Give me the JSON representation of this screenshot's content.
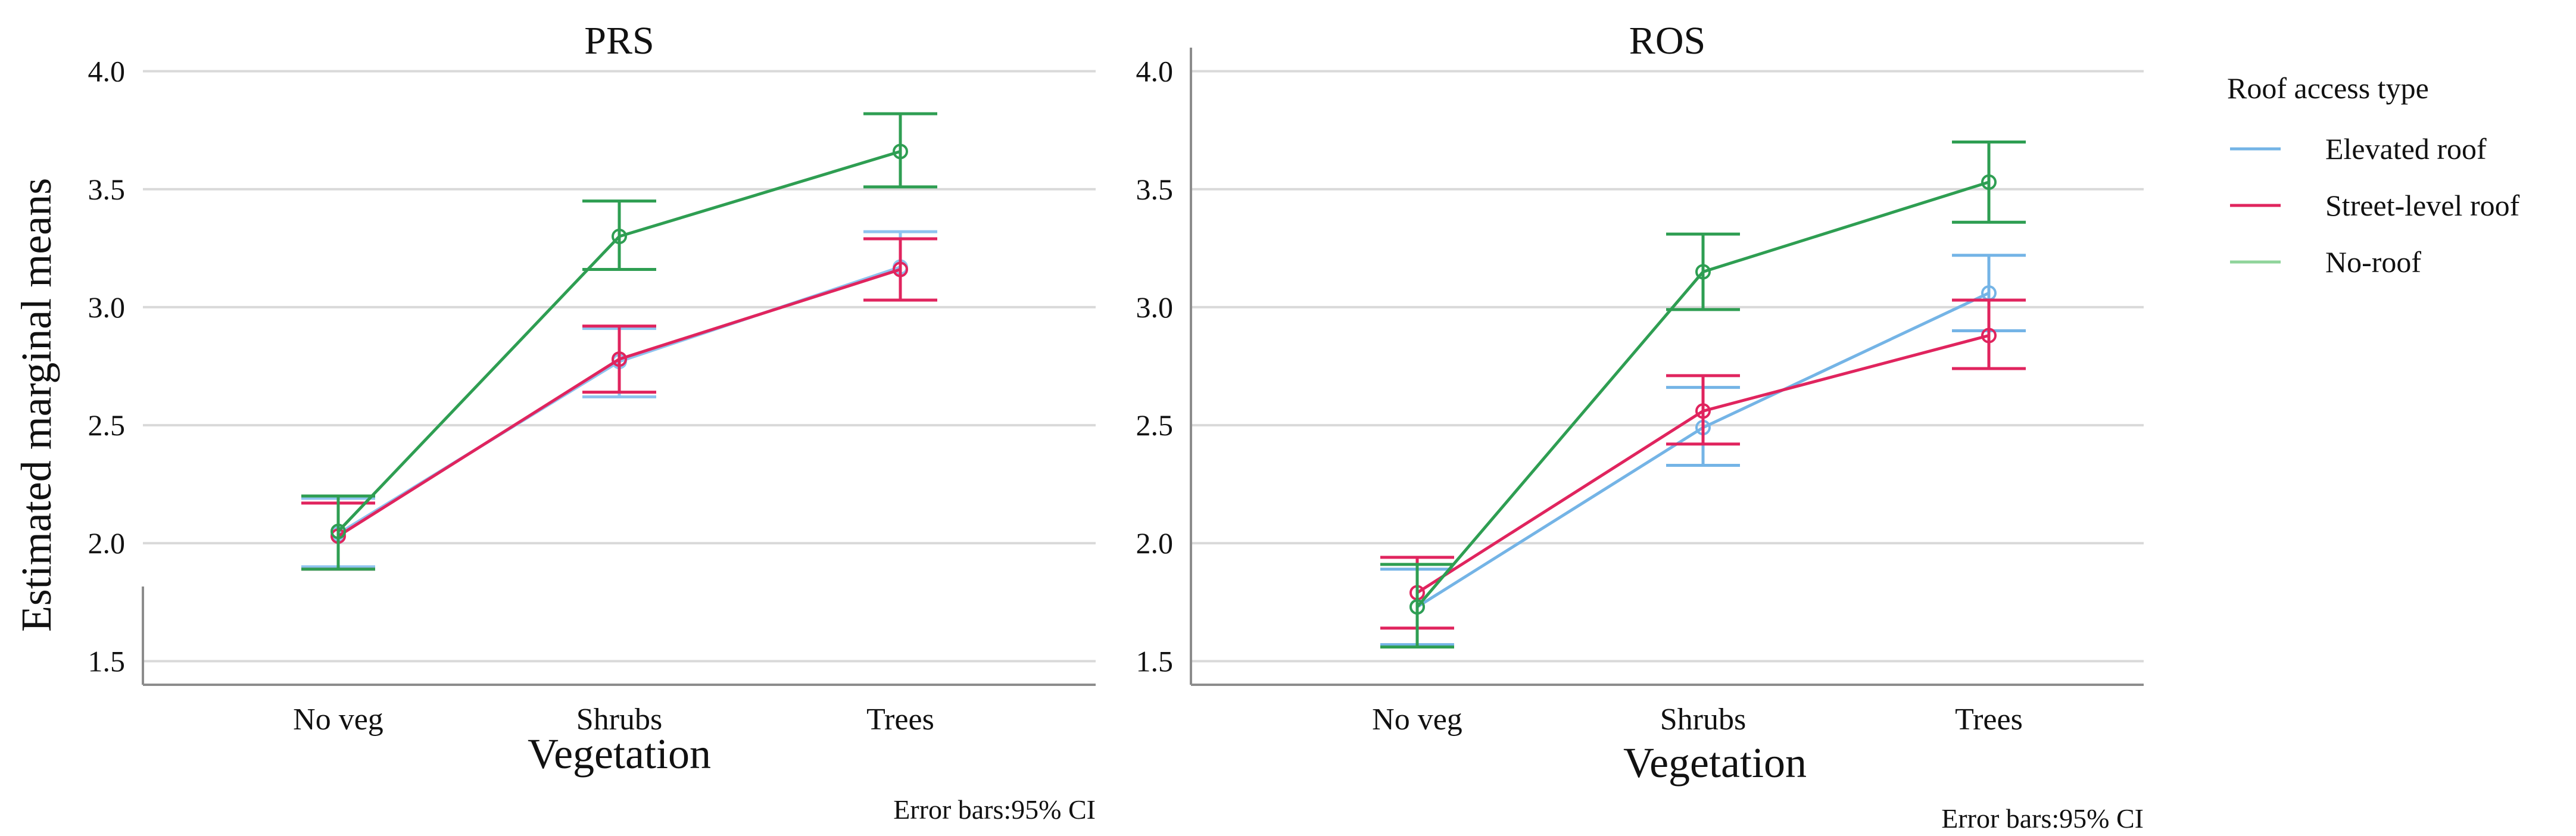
{
  "figure": {
    "y_axis_title": "Estimated marginal means",
    "legend": {
      "title": "Roof access type",
      "placement": "right",
      "entries": [
        {
          "name": "Elevated roof",
          "color": "#74b4e6"
        },
        {
          "name": "Street-level roof",
          "color": "#e0245e"
        },
        {
          "name": "No-roof",
          "color": "#8fd49b"
        }
      ]
    }
  },
  "chart_data": [
    {
      "type": "line",
      "title": "PRS",
      "xlabel": "Vegetation",
      "ylabel": "Estimated marginal means",
      "categories": [
        "No veg",
        "Shrubs",
        "Trees"
      ],
      "ylim": [
        1.4,
        4.1
      ],
      "yticks": [
        1.5,
        2.0,
        2.5,
        3.0,
        3.5,
        4.0
      ],
      "ytick_labels": [
        "1.5",
        "2.0",
        "2.5",
        "3.0",
        "3.5",
        "4.0"
      ],
      "grid": true,
      "note": "Error bars:95% CI",
      "series": [
        {
          "name": "Elevated roof",
          "color": "#8ec3ef",
          "values": [
            2.04,
            2.77,
            3.17
          ],
          "ci_low": [
            1.9,
            2.62,
            3.03
          ],
          "ci_high": [
            2.19,
            2.91,
            3.32
          ]
        },
        {
          "name": "Street-level roof",
          "color": "#e0245e",
          "values": [
            2.03,
            2.78,
            3.16
          ],
          "ci_low": [
            1.89,
            2.64,
            3.03
          ],
          "ci_high": [
            2.17,
            2.92,
            3.29
          ]
        },
        {
          "name": "No-roof",
          "color": "#2e9e52",
          "values": [
            2.05,
            3.3,
            3.66
          ],
          "ci_low": [
            1.89,
            3.16,
            3.51
          ],
          "ci_high": [
            2.2,
            3.45,
            3.82
          ]
        }
      ]
    },
    {
      "type": "line",
      "title": "ROS",
      "xlabel": "Vegetation",
      "ylabel": "",
      "categories": [
        "No veg",
        "Shrubs",
        "Trees"
      ],
      "ylim": [
        1.4,
        4.1
      ],
      "yticks": [
        1.5,
        2.0,
        2.5,
        3.0,
        3.5,
        4.0
      ],
      "ytick_labels": [
        "1.5",
        "2.0",
        "2.5",
        "3.0",
        "3.5",
        "4.0"
      ],
      "grid": true,
      "note": "Error bars:95% CI",
      "series": [
        {
          "name": "Elevated roof",
          "color": "#74b4e6",
          "values": [
            1.73,
            2.49,
            3.06
          ],
          "ci_low": [
            1.57,
            2.33,
            2.9
          ],
          "ci_high": [
            1.89,
            2.66,
            3.22
          ]
        },
        {
          "name": "Street-level roof",
          "color": "#e0245e",
          "values": [
            1.79,
            2.56,
            2.88
          ],
          "ci_low": [
            1.64,
            2.42,
            2.74
          ],
          "ci_high": [
            1.94,
            2.71,
            3.03
          ]
        },
        {
          "name": "No-roof",
          "color": "#2e9e52",
          "values": [
            1.73,
            3.15,
            3.53
          ],
          "ci_low": [
            1.56,
            2.99,
            3.36
          ],
          "ci_high": [
            1.91,
            3.31,
            3.7
          ]
        }
      ]
    }
  ]
}
